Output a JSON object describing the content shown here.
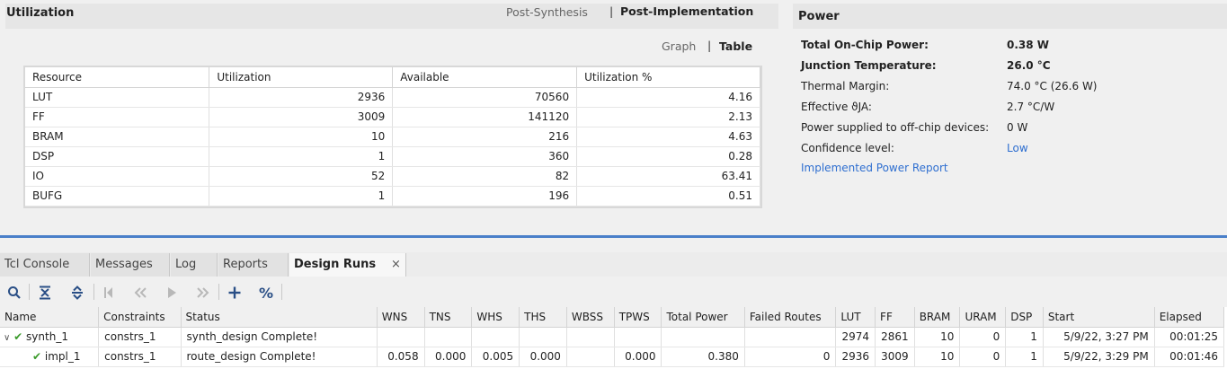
{
  "utilization": {
    "title": "Utilization",
    "tabs": {
      "post_synthesis": "Post-Synthesis",
      "separator": "|",
      "post_implementation": "Post-Implementation"
    },
    "view_tabs": {
      "graph": "Graph",
      "separator": "|",
      "table": "Table"
    },
    "columns": [
      "Resource",
      "Utilization",
      "Available",
      "Utilization %"
    ],
    "rows": [
      [
        "LUT",
        "2936",
        "70560",
        "4.16"
      ],
      [
        "FF",
        "3009",
        "141120",
        "2.13"
      ],
      [
        "BRAM",
        "10",
        "216",
        "4.63"
      ],
      [
        "DSP",
        "1",
        "360",
        "0.28"
      ],
      [
        "IO",
        "52",
        "82",
        "63.41"
      ],
      [
        "BUFG",
        "1",
        "196",
        "0.51"
      ]
    ]
  },
  "power": {
    "title": "Power",
    "rows": [
      {
        "label": "Total On-Chip Power:",
        "value": "0.38 W"
      },
      {
        "label": "Junction Temperature:",
        "value": "26.0 °C"
      },
      {
        "label": "Thermal Margin:",
        "value": "74.0 °C (26.6 W)"
      },
      {
        "label": "Effective ϑJA:",
        "value": "2.7 °C/W"
      },
      {
        "label": "Power supplied to off-chip devices:",
        "value": "0 W"
      },
      {
        "label": "Confidence level:",
        "value": "Low"
      }
    ],
    "report_link": "Implemented Power Report"
  },
  "bottom_tabs": {
    "tcl_console": "Tcl Console",
    "messages": "Messages",
    "log": "Log",
    "reports": "Reports",
    "design_runs": "Design Runs",
    "close": "×"
  },
  "toolbar_icons": [
    "search-icon",
    "collapse-all-icon",
    "expand-all-icon",
    "first-icon",
    "previous-icon",
    "play-icon",
    "next-icon",
    "add-icon",
    "percent-icon"
  ],
  "toolbar": {
    "percent": "%"
  },
  "runs": {
    "columns": [
      "Name",
      "Constraints",
      "Status",
      "WNS",
      "TNS",
      "WHS",
      "THS",
      "WBSS",
      "TPWS",
      "Total Power",
      "Failed Routes",
      "LUT",
      "FF",
      "BRAM",
      "URAM",
      "DSP",
      "Start",
      "Elapsed"
    ],
    "rows": [
      [
        "synth_1",
        "constrs_1",
        "synth_design Complete!",
        "",
        "",
        "",
        "",
        "",
        "",
        "",
        "",
        "2974",
        "2861",
        "10",
        "0",
        "1",
        "5/9/22, 3:27 PM",
        "00:01:25"
      ],
      [
        "impl_1",
        "constrs_1",
        "route_design Complete!",
        "0.058",
        "0.000",
        "0.005",
        "0.000",
        "",
        "0.000",
        "0.380",
        "0",
        "2936",
        "3009",
        "10",
        "0",
        "1",
        "5/9/22, 3:29 PM",
        "00:01:46"
      ]
    ]
  },
  "colors": {
    "accent": "#4a7fc9",
    "link": "#2f6fd0",
    "check": "#3a9a2a"
  }
}
